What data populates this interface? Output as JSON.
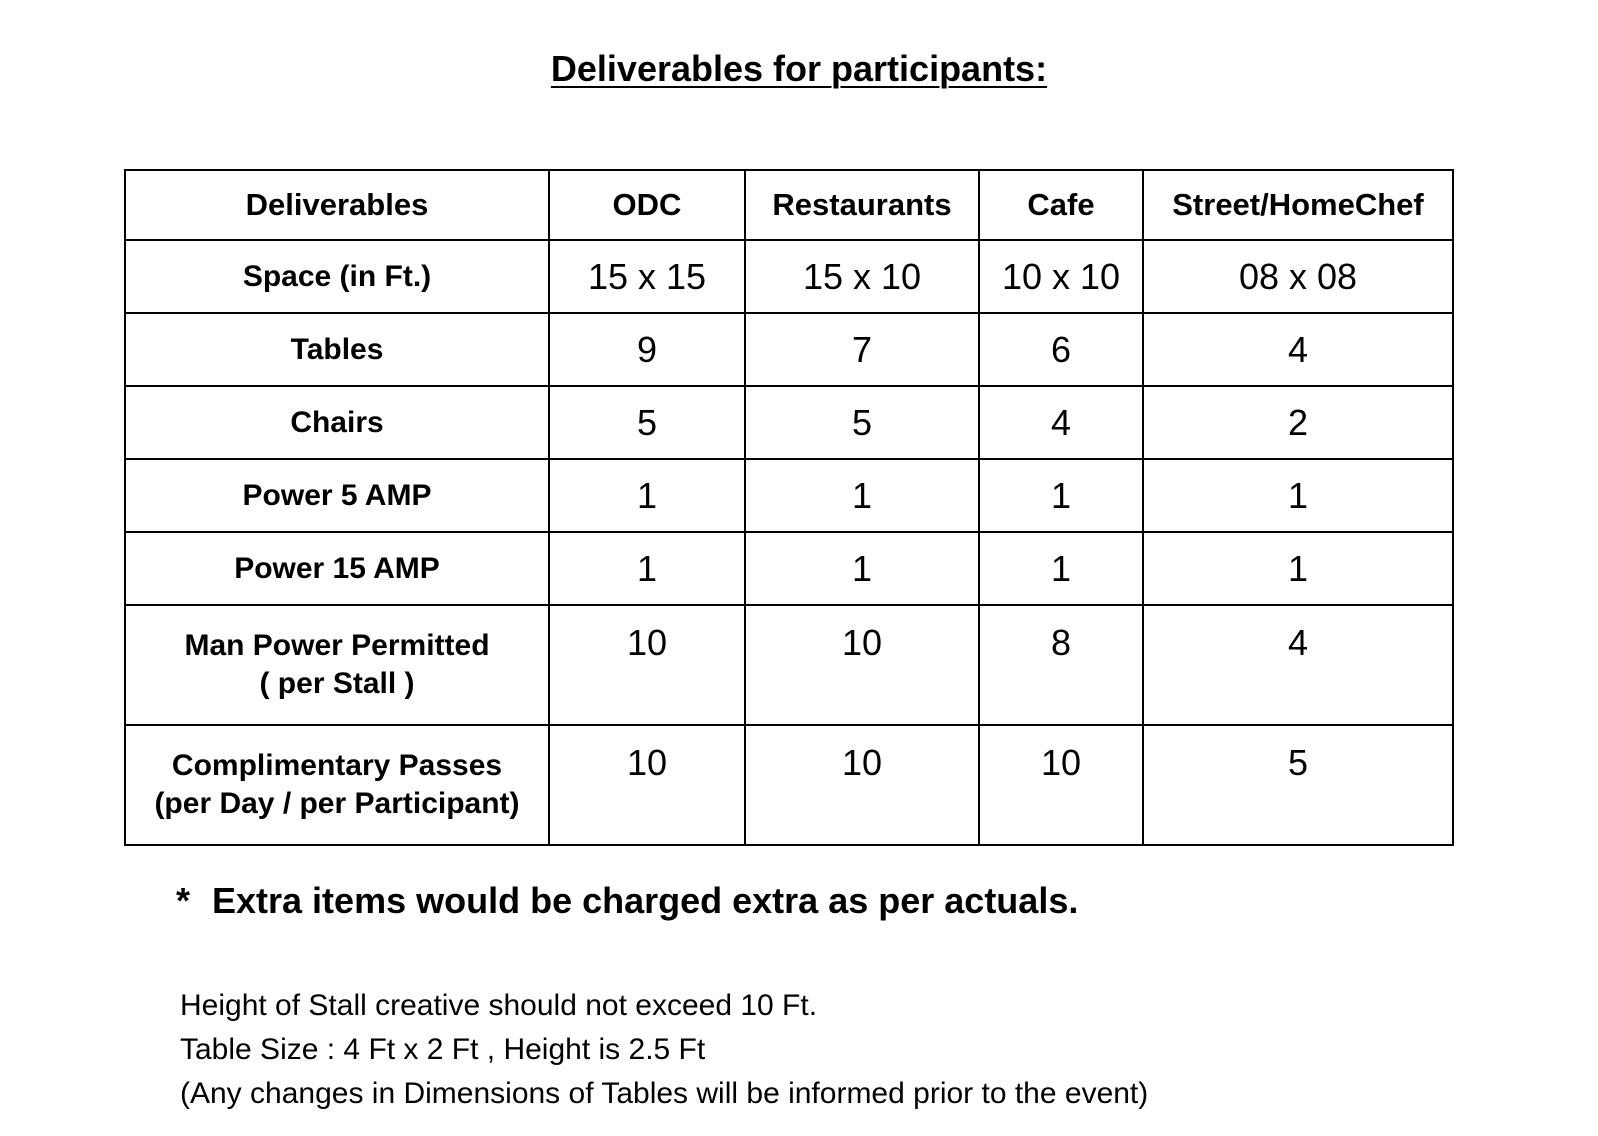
{
  "title": "Deliverables for participants:",
  "table": {
    "headers": [
      "Deliverables",
      "ODC",
      "Restaurants",
      "Cafe",
      "Street/HomeChef"
    ],
    "rows": [
      {
        "label_lines": [
          "Space (in Ft.)"
        ],
        "values": [
          "15 x 15",
          "15 x 10",
          "10 x 10",
          "08 x 08"
        ]
      },
      {
        "label_lines": [
          "Tables"
        ],
        "values": [
          "9",
          "7",
          "6",
          "4"
        ]
      },
      {
        "label_lines": [
          "Chairs"
        ],
        "values": [
          "5",
          "5",
          "4",
          "2"
        ]
      },
      {
        "label_lines": [
          "Power 5 AMP"
        ],
        "values": [
          "1",
          "1",
          "1",
          "1"
        ]
      },
      {
        "label_lines": [
          "Power 15 AMP"
        ],
        "values": [
          "1",
          "1",
          "1",
          "1"
        ]
      },
      {
        "label_lines": [
          "Man Power Permitted",
          "( per Stall )"
        ],
        "values": [
          "10",
          "10",
          "8",
          "4"
        ]
      },
      {
        "label_lines": [
          "Complimentary Passes",
          "(per Day / per Participant)"
        ],
        "values": [
          "10",
          "10",
          "10",
          "5"
        ]
      }
    ]
  },
  "note": {
    "marker": "*",
    "text": "Extra items would be charged extra as per actuals."
  },
  "info_lines": [
    "Height of Stall creative should not exceed 10 Ft.",
    "Table Size : 4 Ft x 2 Ft , Height is 2.5 Ft",
    "(Any changes in Dimensions of Tables will be informed prior to the event)"
  ]
}
